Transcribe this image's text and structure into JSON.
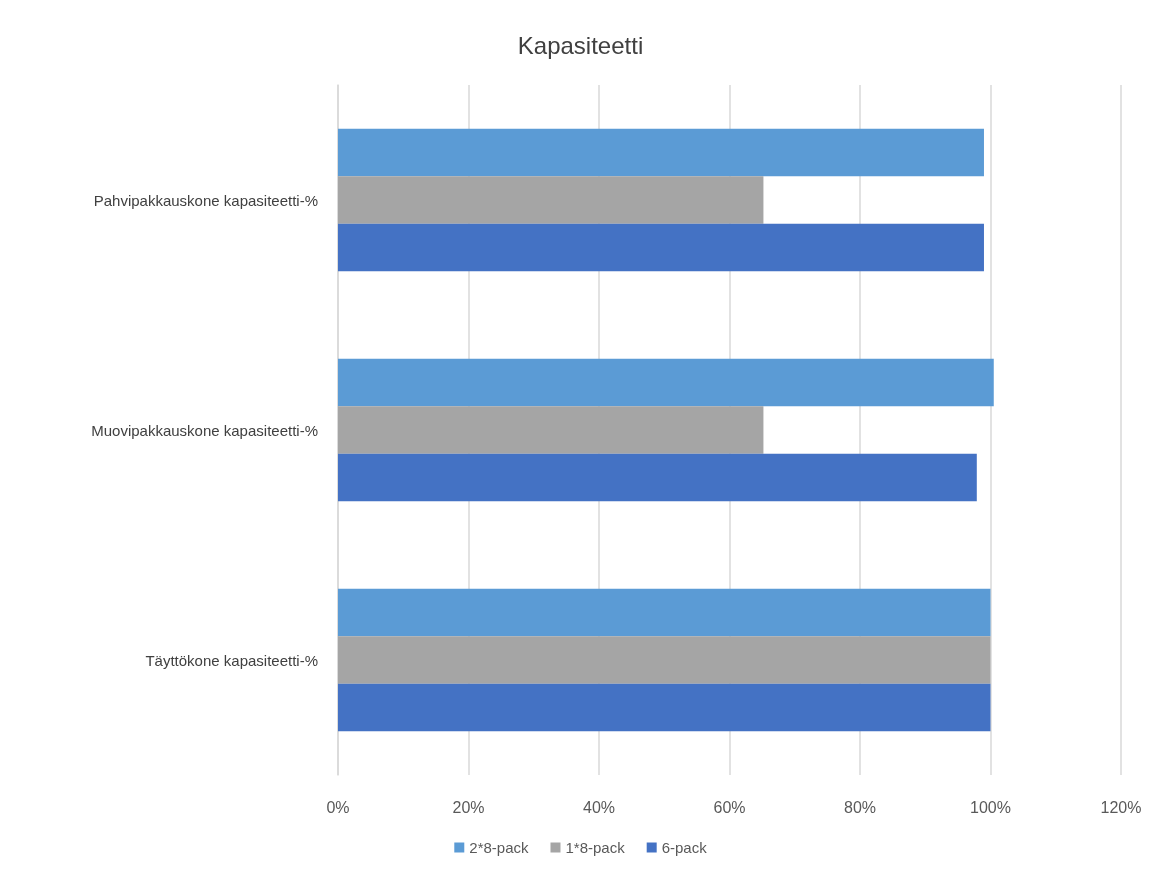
{
  "chart_data": {
    "type": "bar",
    "orientation": "horizontal",
    "title": "Kapasiteetti",
    "categories": [
      "Pahvipakkauskone kapasiteetti-%",
      "Muovipakkauskone kapasiteetti-%",
      "Täyttökone kapasiteetti-%"
    ],
    "series": [
      {
        "name": "2*8-pack",
        "color": "#5b9bd5",
        "values": [
          99.0,
          100.5,
          100
        ]
      },
      {
        "name": "1*8-pack",
        "color": "#a5a5a5",
        "values": [
          65.2,
          65.2,
          100
        ]
      },
      {
        "name": "6-pack",
        "color": "#4472c4",
        "values": [
          99.0,
          97.9,
          100
        ]
      }
    ],
    "xlim": [
      0,
      120
    ],
    "xticks": [
      {
        "value": 0,
        "label": "0%"
      },
      {
        "value": 20,
        "label": "20%"
      },
      {
        "value": 40,
        "label": "40%"
      },
      {
        "value": 60,
        "label": "60%"
      },
      {
        "value": 80,
        "label": "80%"
      },
      {
        "value": 100,
        "label": "100%"
      },
      {
        "value": 120,
        "label": "120%"
      }
    ],
    "grid": "x",
    "legend": "bottom"
  }
}
